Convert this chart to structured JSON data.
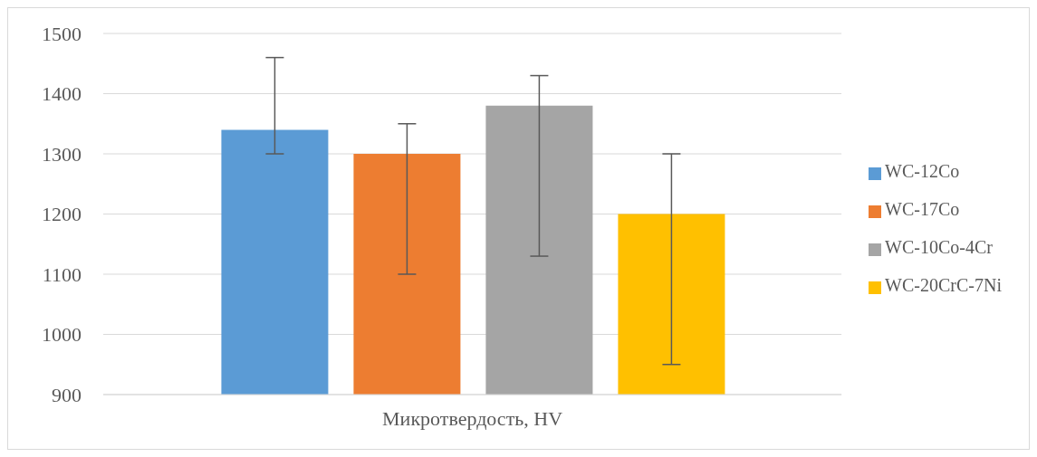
{
  "chart_data": {
    "type": "bar",
    "categories": [
      "Микротвердость, HV"
    ],
    "series": [
      {
        "name": "WC-12Co",
        "color": "#5b9bd5",
        "values": [
          1340
        ],
        "errors": [
          [
            1300,
            1460
          ]
        ]
      },
      {
        "name": "WC-17Co",
        "color": "#ed7d31",
        "values": [
          1300
        ],
        "errors": [
          [
            1100,
            1350
          ]
        ]
      },
      {
        "name": "WC-10Co-4Cr",
        "color": "#a5a5a5",
        "values": [
          1380
        ],
        "errors": [
          [
            1130,
            1430
          ]
        ]
      },
      {
        "name": "WC-20CrC-7Ni",
        "color": "#ffc000",
        "values": [
          1200
        ],
        "errors": [
          [
            950,
            1300
          ]
        ]
      }
    ],
    "ylim": [
      900,
      1500
    ],
    "yticks": [
      900,
      1000,
      1100,
      1200,
      1300,
      1400,
      1500
    ],
    "grid": "y",
    "legend": "right"
  }
}
